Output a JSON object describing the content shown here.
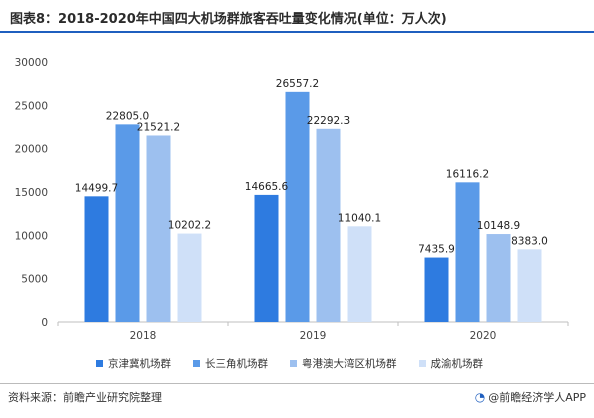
{
  "title": "图表8：2018-2020年中国四大机场群旅客吞吐量变化情况(单位：万人次)",
  "footer": {
    "source": "资料来源：前瞻产业研究院整理",
    "brand_icon": "qianzhan-logo-icon",
    "brand": "@前瞻经济学人APP"
  },
  "colors": {
    "series": [
      "#2e7be0",
      "#5a9ae8",
      "#9dc0ef",
      "#cfe0f8"
    ],
    "title_rule": "#1f5fbf"
  },
  "chart_data": {
    "type": "bar",
    "categories": [
      "2018",
      "2019",
      "2020"
    ],
    "series": [
      {
        "name": "京津冀机场群",
        "values": [
          14499.7,
          14665.6,
          7435.9
        ]
      },
      {
        "name": "长三角机场群",
        "values": [
          22805.0,
          26557.2,
          16116.2
        ]
      },
      {
        "name": "粤港澳大湾区机场群",
        "values": [
          21521.2,
          22292.3,
          10148.9
        ]
      },
      {
        "name": "成渝机场群",
        "values": [
          10202.2,
          11040.1,
          8383.0
        ]
      }
    ],
    "data_labels": [
      [
        "14499.7",
        "14665.6",
        "7435.9"
      ],
      [
        "22805.0",
        "26557.2",
        "16116.2"
      ],
      [
        "21521.2",
        "22292.3",
        "10148.9"
      ],
      [
        "10202.2",
        "11040.1",
        "8383.0"
      ]
    ],
    "yticks": [
      "0",
      "5000",
      "10000",
      "15000",
      "20000",
      "25000",
      "30000"
    ],
    "ylim": [
      0,
      30000
    ],
    "grid": false,
    "legend_position": "bottom"
  }
}
